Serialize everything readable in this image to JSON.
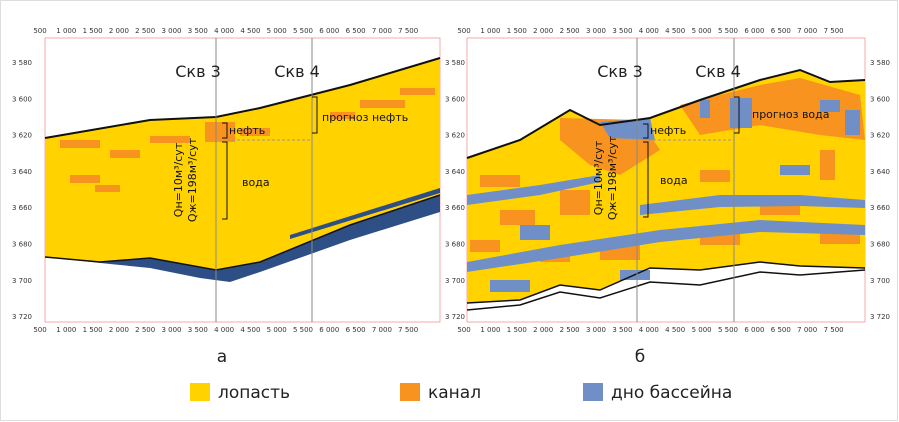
{
  "panels": [
    {
      "letter": "а",
      "x_ticks": [
        "500",
        "1 000",
        "1 500",
        "2 000",
        "2 500",
        "3 000",
        "3 500",
        "4 000",
        "4 500",
        "5 000",
        "5 500",
        "6 000",
        "6 500",
        "7 000",
        "7 500"
      ],
      "y_ticks": [
        "3 580",
        "3 600",
        "3 620",
        "3 640",
        "3 660",
        "3 680",
        "3 700",
        "3 720"
      ],
      "wells": [
        "Скв 3",
        "Скв 4"
      ],
      "labels": {
        "oil": "нефть",
        "water": "вода",
        "forecast": "прогноз нефть",
        "qo": "Qн=10м³/сут",
        "ql": "Qж=198м³/сут"
      }
    },
    {
      "letter": "б",
      "x_ticks": [
        "500",
        "1 000",
        "1 500",
        "2 000",
        "2 500",
        "3 000",
        "3 500",
        "4 000",
        "4 500",
        "5 000",
        "5 500",
        "6 000",
        "6 500",
        "7 000",
        "7 500"
      ],
      "y_ticks": [
        "3 580",
        "3 600",
        "3 620",
        "3 640",
        "3 660",
        "3 680",
        "3 700",
        "3 720"
      ],
      "wells": [
        "Скв 3",
        "Скв 4"
      ],
      "labels": {
        "oil": "нефть",
        "water": "вода",
        "forecast": "прогноз вода",
        "qo": "Qн=10м³/сут",
        "ql": "Qж=198м³/сут"
      }
    }
  ],
  "legend": [
    {
      "label": "лопасть",
      "color": "#ffd200"
    },
    {
      "label": "канал",
      "color": "#f7931e"
    },
    {
      "label": "дно бассейна",
      "color": "#6f8fc6"
    }
  ]
}
